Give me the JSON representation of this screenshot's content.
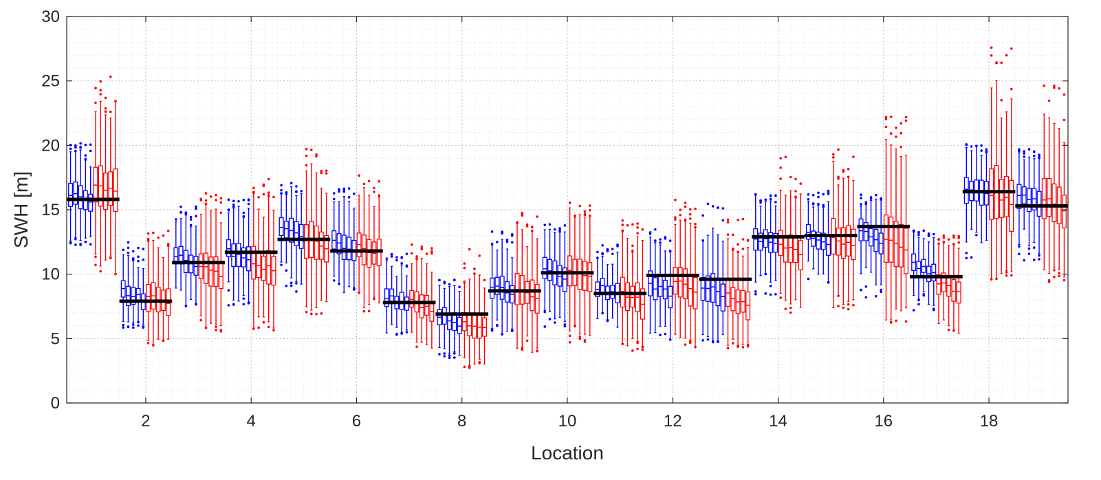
{
  "chart_data": {
    "type": "box",
    "xlabel": "Location",
    "ylabel": "SWH [m]",
    "xlim": [
      0.5,
      19.5
    ],
    "ylim": [
      0,
      30
    ],
    "xticks": [
      2,
      4,
      6,
      8,
      10,
      12,
      14,
      16,
      18
    ],
    "yticks": [
      0,
      5,
      10,
      15,
      20,
      25,
      30
    ],
    "grid": "major and minor, dotted",
    "group_colors": {
      "first_half": "#0000ff",
      "second_half": "#ff0000",
      "reference_line": "#000000"
    },
    "boxes_per_location": 10,
    "locations": [
      {
        "location": 1,
        "reference": 15.8,
        "blue_median": 16.0,
        "red_median": 16.6,
        "blue_range": [
          12.2,
          20.2
        ],
        "red_range": [
          10.0,
          25.6
        ]
      },
      {
        "location": 2,
        "reference": 7.9,
        "blue_median": 8.4,
        "red_median": 8.0,
        "blue_range": [
          5.8,
          12.5
        ],
        "red_range": [
          4.4,
          13.5
        ]
      },
      {
        "location": 3,
        "reference": 10.9,
        "blue_median": 11.2,
        "red_median": 10.2,
        "blue_range": [
          7.5,
          15.5
        ],
        "red_range": [
          5.5,
          16.3
        ]
      },
      {
        "location": 4,
        "reference": 11.7,
        "blue_median": 11.4,
        "red_median": 10.6,
        "blue_range": [
          7.2,
          15.9
        ],
        "red_range": [
          5.6,
          17.9
        ]
      },
      {
        "location": 5,
        "reference": 12.7,
        "blue_median": 13.2,
        "red_median": 12.5,
        "blue_range": [
          8.5,
          17.1
        ],
        "red_range": [
          6.8,
          20.1
        ]
      },
      {
        "location": 6,
        "reference": 11.8,
        "blue_median": 12.1,
        "red_median": 11.9,
        "blue_range": [
          8.5,
          16.7
        ],
        "red_range": [
          6.9,
          17.9
        ]
      },
      {
        "location": 7,
        "reference": 7.8,
        "blue_median": 8.0,
        "red_median": 7.6,
        "blue_range": [
          5.3,
          11.6
        ],
        "red_range": [
          4.1,
          12.3
        ]
      },
      {
        "location": 8,
        "reference": 6.9,
        "blue_median": 6.4,
        "red_median": 6.0,
        "blue_range": [
          3.5,
          9.6
        ],
        "red_range": [
          2.7,
          12.0
        ]
      },
      {
        "location": 9,
        "reference": 8.7,
        "blue_median": 8.8,
        "red_median": 8.5,
        "blue_range": [
          5.2,
          13.4
        ],
        "red_range": [
          3.9,
          14.8
        ]
      },
      {
        "location": 10,
        "reference": 10.1,
        "blue_median": 10.2,
        "red_median": 10.0,
        "blue_range": [
          5.9,
          14.1
        ],
        "red_range": [
          4.6,
          15.6
        ]
      },
      {
        "location": 11,
        "reference": 8.5,
        "blue_median": 8.7,
        "red_median": 8.2,
        "blue_range": [
          5.6,
          12.4
        ],
        "red_range": [
          4.0,
          14.3
        ]
      },
      {
        "location": 12,
        "reference": 9.9,
        "blue_median": 8.9,
        "red_median": 9.1,
        "blue_range": [
          4.6,
          13.6
        ],
        "red_range": [
          4.3,
          15.8
        ]
      },
      {
        "location": 13,
        "reference": 9.6,
        "blue_median": 8.8,
        "red_median": 8.1,
        "blue_range": [
          4.7,
          15.7
        ],
        "red_range": [
          4.2,
          14.3
        ]
      },
      {
        "location": 14,
        "reference": 12.9,
        "blue_median": 12.6,
        "red_median": 12.0,
        "blue_range": [
          8.3,
          16.2
        ],
        "red_range": [
          6.7,
          19.2
        ]
      },
      {
        "location": 15,
        "reference": 13.0,
        "blue_median": 12.8,
        "red_median": 12.5,
        "blue_range": [
          9.3,
          16.5
        ],
        "red_range": [
          7.1,
          19.8
        ]
      },
      {
        "location": 16,
        "reference": 13.7,
        "blue_median": 12.9,
        "red_median": 12.4,
        "blue_range": [
          8.2,
          16.2
        ],
        "red_range": [
          6.2,
          22.4
        ]
      },
      {
        "location": 17,
        "reference": 9.8,
        "blue_median": 10.4,
        "red_median": 9.1,
        "blue_range": [
          7.1,
          13.4
        ],
        "red_range": [
          5.4,
          13.0
        ]
      },
      {
        "location": 18,
        "reference": 16.4,
        "blue_median": 16.4,
        "red_median": 16.0,
        "blue_range": [
          11.0,
          20.2
        ],
        "red_range": [
          9.6,
          27.8
        ]
      },
      {
        "location": 19,
        "reference": 15.3,
        "blue_median": 15.9,
        "red_median": 15.5,
        "blue_range": [
          11.0,
          19.7
        ],
        "red_range": [
          9.4,
          24.8
        ]
      }
    ]
  }
}
